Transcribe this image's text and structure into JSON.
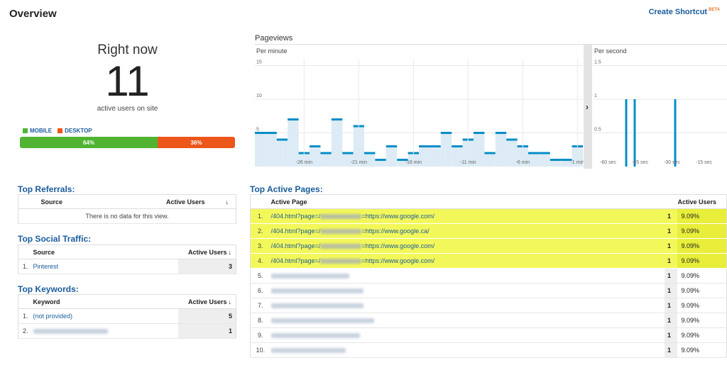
{
  "header": {
    "title": "Overview",
    "shortcut": "Create Shortcut",
    "shortcut_badge": "BETA"
  },
  "right_now": {
    "title": "Right now",
    "count": "11",
    "sub": "active users on site",
    "mobile_label": "MOBILE",
    "desktop_label": "DESKTOP",
    "mobile_pct": "64%",
    "desktop_pct": "36%",
    "mobile_color": "#50b432",
    "desktop_color": "#ed561b"
  },
  "pageviews": {
    "title": "Pageviews",
    "per_minute": "Per minute",
    "per_second": "Per second",
    "minute_ticks": [
      "-26 min",
      "-21 min",
      "-16 min",
      "-11 min",
      "-6 min",
      "-1 min"
    ],
    "second_ticks": [
      "-60 sec",
      "-45 sec",
      "-30 sec",
      "-15 sec"
    ],
    "minute_y": [
      "15",
      "10",
      "5"
    ],
    "second_y": [
      "1.5",
      "1",
      "0.5"
    ],
    "collapse_arrow": "›"
  },
  "chart_data": [
    {
      "type": "bar",
      "title": "Per minute",
      "categories": [
        "-30",
        "-29",
        "-28",
        "-27",
        "-26",
        "-25",
        "-24",
        "-23",
        "-22",
        "-21",
        "-20",
        "-19",
        "-18",
        "-17",
        "-16",
        "-15",
        "-14",
        "-13",
        "-12",
        "-11",
        "-10",
        "-9",
        "-8",
        "-7",
        "-6",
        "-5",
        "-4",
        "-3",
        "-2",
        "-1"
      ],
      "values": [
        5,
        5,
        4,
        7,
        2,
        3,
        2,
        7,
        2,
        6,
        2,
        1,
        3,
        1,
        2,
        3,
        3,
        5,
        3,
        4,
        5,
        2,
        5,
        4,
        3,
        2,
        2,
        1,
        1,
        3
      ],
      "ylim": [
        0,
        16
      ]
    },
    {
      "type": "bar",
      "title": "Per second",
      "categories": [
        "-47",
        "-43",
        "-24"
      ],
      "values": [
        1,
        1,
        1
      ],
      "ylim": [
        0,
        1.6
      ]
    }
  ],
  "referrals": {
    "title": "Top Referrals:",
    "col_source": "Source",
    "col_users": "Active Users",
    "empty": "There is no data for this view."
  },
  "social": {
    "title": "Top Social Traffic:",
    "col_source": "Source",
    "col_users": "Active Users",
    "rows": [
      {
        "n": "1.",
        "name": "Pinterest",
        "v": "3"
      }
    ]
  },
  "keywords": {
    "title": "Top Keywords:",
    "col_keyword": "Keyword",
    "col_users": "Active Users",
    "rows": [
      {
        "n": "1.",
        "name": "(not provided)",
        "v": "5"
      },
      {
        "n": "2.",
        "name": "",
        "v": "1"
      }
    ]
  },
  "pages": {
    "title": "Top Active Pages:",
    "col_page": "Active Page",
    "col_users": "Active Users",
    "rows": [
      {
        "n": "1.",
        "pre": "/404.html?page=/",
        "post": "=https://www.google.com/",
        "v": "1",
        "pct": "9.09%"
      },
      {
        "n": "2.",
        "pre": "/404.html?page=/",
        "post": "=https://www.google.ca/",
        "v": "1",
        "pct": "9.09%"
      },
      {
        "n": "3.",
        "pre": "/404.html?page=/",
        "post": "=https://www.google.com/",
        "v": "1",
        "pct": "9.09%"
      },
      {
        "n": "4.",
        "pre": "/404.html?page=/",
        "post": "=https://www.google.com/",
        "v": "1",
        "pct": "9.09%"
      },
      {
        "n": "5.",
        "pre": "",
        "post": "",
        "v": "1",
        "pct": "9.09%"
      },
      {
        "n": "6.",
        "pre": "",
        "post": "",
        "v": "1",
        "pct": "9.09%"
      },
      {
        "n": "7.",
        "pre": "",
        "post": "",
        "v": "1",
        "pct": "9.09%"
      },
      {
        "n": "8.",
        "pre": "",
        "post": "",
        "v": "1",
        "pct": "9.09%"
      },
      {
        "n": "9.",
        "pre": "",
        "post": "",
        "v": "1",
        "pct": "9.09%"
      },
      {
        "n": "10.",
        "pre": "",
        "post": "",
        "v": "1",
        "pct": "9.09%"
      }
    ]
  }
}
